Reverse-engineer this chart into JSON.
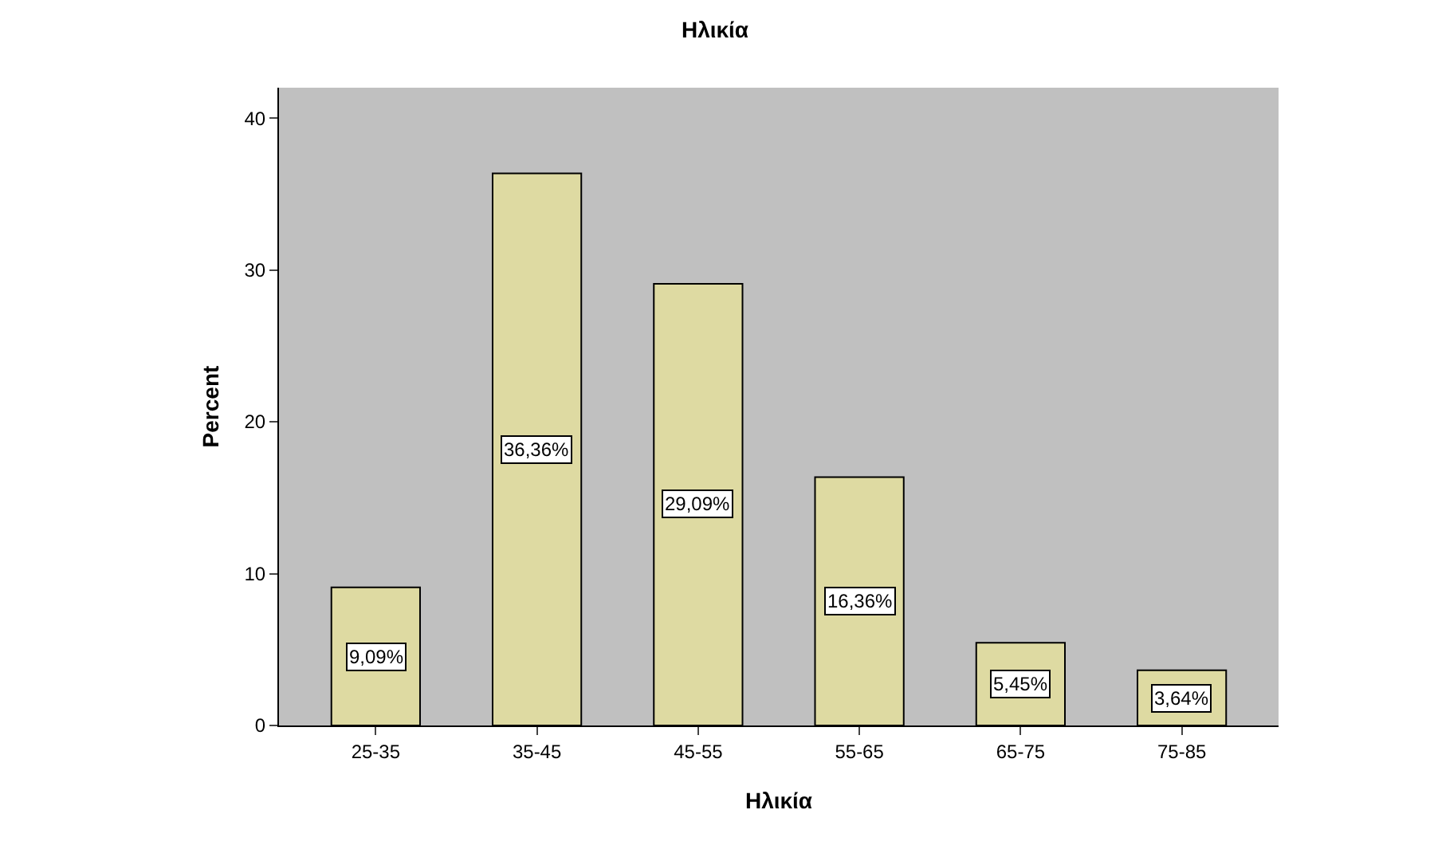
{
  "chart_data": {
    "type": "bar",
    "title": "Ηλικία",
    "xlabel": "Ηλικία",
    "ylabel": "Percent",
    "categories": [
      "25-35",
      "35-45",
      "45-55",
      "55-65",
      "65-75",
      "75-85"
    ],
    "values": [
      9.09,
      36.36,
      29.09,
      16.36,
      5.45,
      3.64
    ],
    "value_labels": [
      "9,09%",
      "36,36%",
      "29,09%",
      "16,36%",
      "5,45%",
      "3,64%"
    ],
    "color": "#dedaa2",
    "ylim": [
      0,
      42
    ],
    "yticks": [
      0,
      10,
      20,
      30,
      40
    ],
    "grid": false
  }
}
